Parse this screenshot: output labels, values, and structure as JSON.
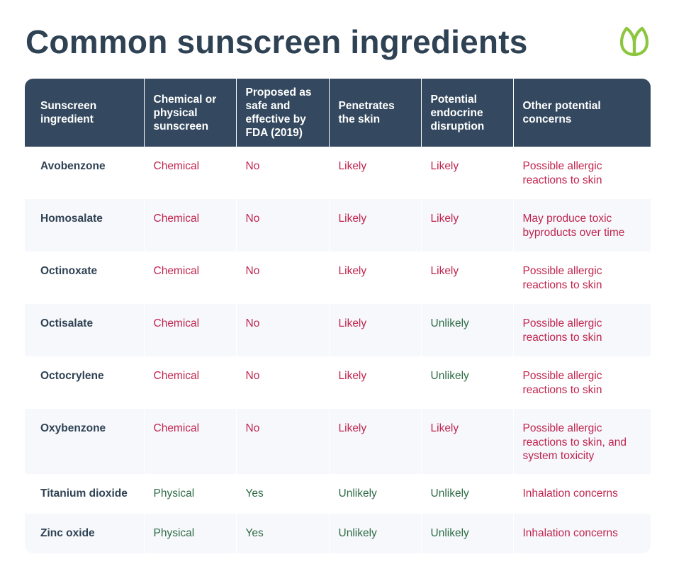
{
  "title": "Common sunscreen ingredients",
  "logo_icon": "leaf-logo-icon",
  "colors": {
    "header_bg": "#34495f",
    "title": "#2f4254",
    "concern_red": "#c0254f",
    "safe_green": "#2e6b45",
    "logo_green": "#8cc63f"
  },
  "table": {
    "headers": [
      "Sunscreen ingredient",
      "Chemical or physical sunscreen",
      "Proposed as safe and effective by FDA (2019)",
      "Penetrates the skin",
      "Potential endocrine disruption",
      "Other potential concerns"
    ],
    "rows": [
      [
        "Avobenzone",
        "Chemical",
        "No",
        "Likely",
        "Likely",
        "Possible allergic reactions to skin"
      ],
      [
        "Homosalate",
        "Chemical",
        "No",
        "Likely",
        "Likely",
        "May produce toxic byproducts over time"
      ],
      [
        "Octinoxate",
        "Chemical",
        "No",
        "Likely",
        "Likely",
        "Possible allergic reactions to skin"
      ],
      [
        "Octisalate",
        "Chemical",
        "No",
        "Likely",
        "Unlikely",
        "Possible allergic reactions to skin"
      ],
      [
        "Octocrylene",
        "Chemical",
        "No",
        "Likely",
        "Unlikely",
        "Possible allergic reactions to skin"
      ],
      [
        "Oxybenzone",
        "Chemical",
        "No",
        "Likely",
        "Likely",
        "Possible allergic reactions to skin, and system toxicity"
      ],
      [
        "Titanium dioxide",
        "Physical",
        "Yes",
        "Unlikely",
        "Unlikely",
        "Inhalation concerns"
      ],
      [
        "Zinc oxide",
        "Physical",
        "Yes",
        "Unlikely",
        "Unlikely",
        "Inhalation concerns"
      ]
    ]
  }
}
